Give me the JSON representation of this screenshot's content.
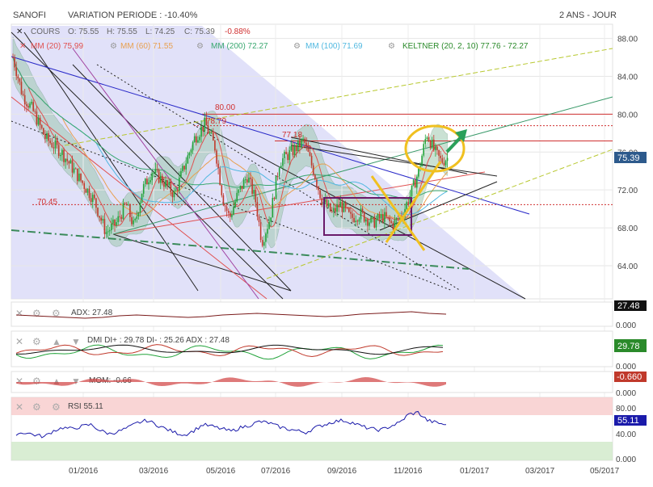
{
  "header": {
    "symbol": "SANOFI",
    "variation_label": "VARIATION PERIODE : -10.40%",
    "timeframe": "2 ANS - JOUR"
  },
  "quote": {
    "cours_label": "COURS",
    "open": "O: 75.55",
    "high": "H: 75.55",
    "low": "L: 74.25",
    "close": "C: 75.39",
    "change": "-0.88%"
  },
  "indicators": {
    "mm20": "MM (20) 75.99",
    "mm60": "MM (60) 71.55",
    "mm200": "MM (200) 72.27",
    "mm100": "MM (100) 71.69",
    "keltner": "KELTNER (20, 2, 10) 77.76 - 72.27"
  },
  "level_labels": {
    "l80": "80.00",
    "l78": "78.79",
    "l77": "77.18",
    "l70": "70.45"
  },
  "price_badge": "75.39",
  "panels": {
    "adx": {
      "label": "ADX: 27.48",
      "badge": "27.48",
      "zero": "0.000"
    },
    "dmi": {
      "label": "DMI DI+ : 29.78 DI- : 25.26 ADX : 27.48",
      "badge": "29.78",
      "zero": "0.000"
    },
    "mom": {
      "label": "MOM: -0.66",
      "badge": "-0.660",
      "zero": "0.000"
    },
    "rsi": {
      "label": "RSI 55.11",
      "badge": "55.11",
      "t80": "80.00",
      "t40": "40.00",
      "t0": "0.000"
    }
  },
  "colors": {
    "up": "#22a33a",
    "down": "#c0392b",
    "mm20": "#e05050",
    "mm60": "#e8a050",
    "mm200": "#3aa870",
    "mm100": "#50b8e0",
    "keltner": "#3a9a3a",
    "channel_fill": "#dcdcfa",
    "rsi_line": "#1a1aaa"
  },
  "chart_data": {
    "type": "candlestick",
    "x_tick_labels": [
      "01/2016",
      "03/2016",
      "05/2016",
      "07/2016",
      "09/2016",
      "11/2016",
      "01/2017",
      "03/2017",
      "05/2017"
    ],
    "y_tick_labels": [
      "88.00",
      "84.00",
      "80.00",
      "76.00",
      "72.00",
      "68.00",
      "64.00"
    ],
    "ylim": [
      60.5,
      89.5
    ],
    "horizontal_levels": [
      80.0,
      78.79,
      77.18,
      70.45
    ],
    "last_close": 75.39,
    "price_path": [
      [
        0,
        86.0
      ],
      [
        12,
        82.0
      ],
      [
        24,
        80.5
      ],
      [
        40,
        77.5
      ],
      [
        60,
        76.0
      ],
      [
        80,
        73.5
      ],
      [
        100,
        71.0
      ],
      [
        115,
        67.5
      ],
      [
        128,
        68.5
      ],
      [
        140,
        70.5
      ],
      [
        150,
        68.0
      ],
      [
        160,
        72.0
      ],
      [
        172,
        74.0
      ],
      [
        185,
        73.0
      ],
      [
        200,
        71.5
      ],
      [
        212,
        74.5
      ],
      [
        225,
        77.5
      ],
      [
        238,
        79.0
      ],
      [
        250,
        76.5
      ],
      [
        260,
        71.0
      ],
      [
        268,
        69.0
      ],
      [
        278,
        71.5
      ],
      [
        290,
        73.5
      ],
      [
        300,
        71.0
      ],
      [
        308,
        66.5
      ],
      [
        318,
        69.0
      ],
      [
        330,
        75.0
      ],
      [
        345,
        76.0
      ],
      [
        360,
        77.2
      ],
      [
        372,
        74.0
      ],
      [
        382,
        71.0
      ],
      [
        395,
        69.5
      ],
      [
        405,
        70.5
      ],
      [
        418,
        69.0
      ],
      [
        430,
        69.5
      ],
      [
        445,
        68.5
      ],
      [
        458,
        69.2
      ],
      [
        470,
        68.3
      ],
      [
        482,
        69.5
      ],
      [
        492,
        71.5
      ],
      [
        502,
        74.0
      ],
      [
        512,
        78.0
      ],
      [
        522,
        76.0
      ],
      [
        530,
        75.0
      ],
      [
        538,
        75.39
      ]
    ],
    "adx_values": [
      0.5,
      0.45,
      0.4,
      0.35,
      0.3,
      0.35,
      0.45,
      0.5,
      0.45,
      0.4,
      0.35,
      0.4,
      0.5,
      0.55,
      0.6,
      0.55,
      0.5,
      0.45,
      0.4,
      0.45,
      0.55,
      0.6,
      0.65,
      0.7,
      0.6,
      0.55
    ],
    "rsi_values": [
      40,
      42,
      38,
      35,
      45,
      50,
      48,
      52,
      55,
      45,
      40,
      44,
      50,
      58,
      62,
      55,
      48,
      42,
      38,
      45,
      55,
      52,
      48,
      44,
      50,
      54,
      60,
      58,
      52,
      48,
      45,
      42,
      50,
      55,
      60,
      62,
      58,
      52,
      48,
      46,
      52,
      58,
      72,
      75,
      62,
      58,
      55
    ]
  }
}
